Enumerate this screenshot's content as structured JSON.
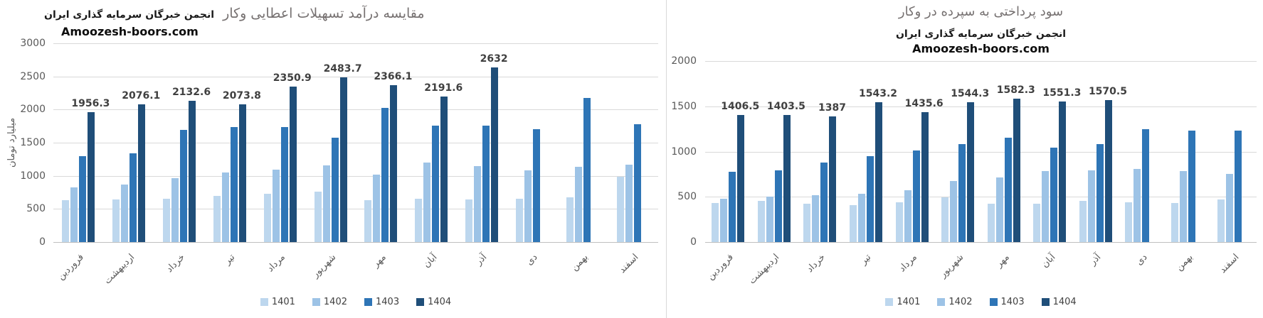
{
  "watermark": "Amoozesh-boors.com",
  "colors": {
    "series_1401": "#BDD7EE",
    "series_1402": "#9DC3E6",
    "series_1403": "#2E75B6",
    "series_1404": "#1F4E79",
    "gridline": "#d9d9d9",
    "axis_text": "#595959",
    "title_gray": "#767171",
    "data_label": "#404040"
  },
  "chart_data": [
    {
      "type": "bar",
      "title": "مقایسه درآمد تسهیلات اعطایی وکار",
      "title_bold": "انجمن خبرگان سرمایه گذاری ایران",
      "watermark": "Amoozesh-boors.com",
      "ylabel": "میلیارد تومان",
      "ylim": [
        0,
        3000
      ],
      "ytick": 500,
      "grid": true,
      "legend_position": "bottom",
      "categories": [
        "فروردین",
        "اردیبهشت",
        "خرداد",
        "تیر",
        "مرداد",
        "شهریور",
        "مهر",
        "آبان",
        "آذر",
        "دی",
        "بهمن",
        "اسفند"
      ],
      "series": [
        {
          "name": "1401",
          "color": "#BDD7EE",
          "values": [
            630,
            640,
            650,
            700,
            730,
            760,
            635,
            655,
            640,
            650,
            680,
            985
          ]
        },
        {
          "name": "1402",
          "color": "#9DC3E6",
          "values": [
            820,
            870,
            960,
            1045,
            1095,
            1155,
            1020,
            1205,
            1150,
            1085,
            1140,
            1170
          ]
        },
        {
          "name": "1403",
          "color": "#2E75B6",
          "values": [
            1300,
            1340,
            1690,
            1735,
            1740,
            1580,
            2030,
            1760,
            1755,
            1700,
            2170,
            1775
          ]
        },
        {
          "name": "1404",
          "color": "#1F4E79",
          "values": [
            1956.3,
            2076.1,
            2132.6,
            2073.8,
            2350.9,
            2483.7,
            2366.1,
            2191.6,
            2632,
            null,
            null,
            null
          ],
          "data_labels": [
            "1956.3",
            "2076.1",
            "2132.6",
            "2073.8",
            "2350.9",
            "2483.7",
            "2366.1",
            "2191.6",
            "2632"
          ]
        }
      ]
    },
    {
      "type": "bar",
      "title": "سود پرداختی به سپرده در وکار",
      "title_bold": "انجمن خبرگان سرمایه گذاری ایران",
      "watermark": "Amoozesh-boors.com",
      "ylabel": "",
      "ylim": [
        0,
        2000
      ],
      "ytick": 500,
      "grid": true,
      "legend_position": "bottom",
      "categories": [
        "فروردین",
        "اردیبهشت",
        "خرداد",
        "تیر",
        "مرداد",
        "شهریور",
        "مهر",
        "آبان",
        "آذر",
        "دی",
        "بهمن",
        "اسفند"
      ],
      "series": [
        {
          "name": "1401",
          "color": "#BDD7EE",
          "values": [
            430,
            455,
            425,
            410,
            440,
            495,
            420,
            425,
            455,
            440,
            435,
            470
          ]
        },
        {
          "name": "1402",
          "color": "#9DC3E6",
          "values": [
            480,
            505,
            520,
            530,
            575,
            675,
            715,
            785,
            795,
            805,
            785,
            750
          ]
        },
        {
          "name": "1403",
          "color": "#2E75B6",
          "values": [
            780,
            795,
            880,
            950,
            1015,
            1080,
            1155,
            1045,
            1085,
            1250,
            1235,
            1230
          ]
        },
        {
          "name": "1404",
          "color": "#1F4E79",
          "values": [
            1406.5,
            1403.5,
            1387,
            1543.2,
            1435.6,
            1544.3,
            1582.3,
            1551.3,
            1570.5,
            null,
            null,
            null
          ],
          "data_labels": [
            "1406.5",
            "1403.5",
            "1387",
            "1543.2",
            "1435.6",
            "1544.3",
            "1582.3",
            "1551.3",
            "1570.5"
          ]
        }
      ]
    }
  ]
}
